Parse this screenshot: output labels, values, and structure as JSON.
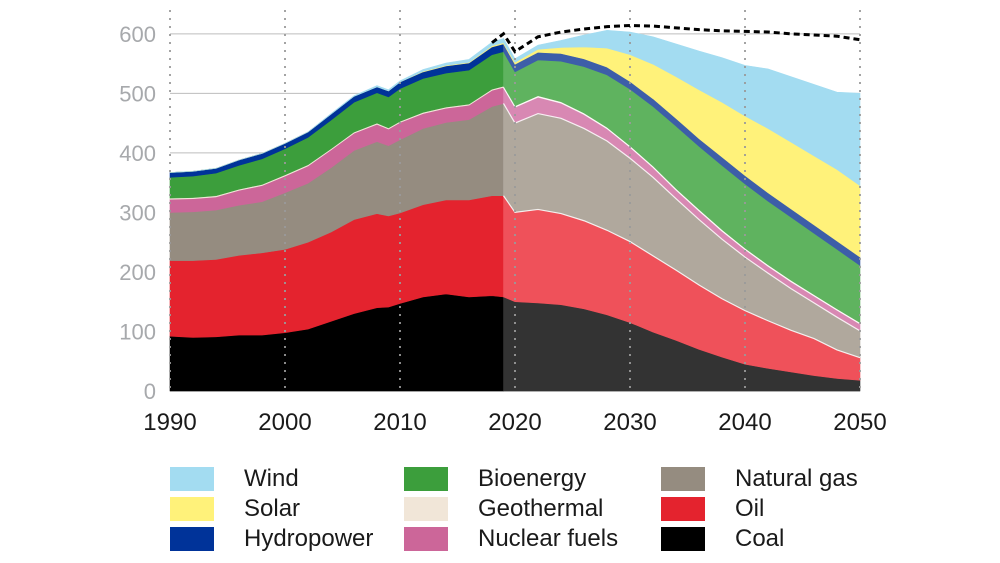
{
  "chart_data": {
    "type": "area",
    "stacked": true,
    "xlabel": "",
    "ylabel": "",
    "xlim": [
      1990,
      2050
    ],
    "ylim": [
      0,
      640
    ],
    "history_end": 2019,
    "yticks": [
      0,
      100,
      200,
      300,
      400,
      500,
      600
    ],
    "xticks": [
      1990,
      2000,
      2010,
      2020,
      2030,
      2040,
      2050
    ],
    "vertical_gridlines_at": [
      1990,
      2000,
      2010,
      2020,
      2030,
      2040,
      2050
    ],
    "x": [
      1990,
      1992,
      1994,
      1996,
      1998,
      2000,
      2002,
      2004,
      2006,
      2008,
      2009,
      2010,
      2012,
      2014,
      2016,
      2018,
      2019,
      2020,
      2022,
      2024,
      2026,
      2028,
      2030,
      2032,
      2034,
      2036,
      2038,
      2040,
      2042,
      2044,
      2046,
      2048,
      2050
    ],
    "series": [
      {
        "name": "Coal",
        "color": "#000000",
        "projection_color": "#333333",
        "values": [
          92,
          90,
          91,
          94,
          94,
          98,
          104,
          117,
          130,
          140,
          141,
          147,
          158,
          163,
          158,
          160,
          158,
          150,
          148,
          145,
          138,
          128,
          115,
          99,
          85,
          70,
          57,
          45,
          38,
          32,
          26,
          21,
          18
        ]
      },
      {
        "name": "Oil",
        "color": "#e4232e",
        "projection_color": "#ef515a",
        "values": [
          127,
          129,
          130,
          134,
          138,
          140,
          146,
          150,
          158,
          158,
          153,
          152,
          155,
          158,
          163,
          168,
          170,
          150,
          157,
          153,
          148,
          142,
          136,
          128,
          118,
          108,
          98,
          90,
          80,
          70,
          62,
          48,
          38
        ]
      },
      {
        "name": "Natural gas",
        "color": "#958c80",
        "projection_color": "#b0a89d",
        "values": [
          81,
          82,
          83,
          84,
          86,
          95,
          99,
          108,
          116,
          121,
          118,
          123,
          128,
          130,
          135,
          150,
          155,
          150,
          161,
          160,
          155,
          150,
          140,
          132,
          120,
          110,
          100,
          90,
          80,
          70,
          60,
          55,
          45
        ]
      },
      {
        "name": "Nuclear fuels",
        "color": "#cc6699",
        "projection_color": "#d888b3",
        "values": [
          22,
          22,
          22,
          25,
          27,
          28,
          29,
          30,
          29,
          29,
          28,
          29,
          25,
          24,
          24,
          27,
          27,
          27,
          28,
          26,
          24,
          21,
          19,
          17,
          15,
          15,
          14,
          13,
          12,
          12,
          12,
          12,
          12
        ]
      },
      {
        "name": "Geothermal",
        "color": "#f1e6d8",
        "projection_color": "#f1e6d8",
        "values": [
          2,
          2,
          2,
          2,
          2,
          2,
          2,
          2,
          2,
          2,
          2,
          2,
          2,
          2,
          2,
          2,
          2,
          2,
          2,
          2,
          2,
          2,
          2,
          2,
          2,
          2,
          2,
          2,
          2,
          2,
          2,
          2,
          2
        ]
      },
      {
        "name": "Bioenergy",
        "color": "#3c9e3c",
        "projection_color": "#5fb35f",
        "values": [
          35,
          36,
          38,
          40,
          43,
          44,
          46,
          48,
          50,
          51,
          52,
          55,
          57,
          57,
          57,
          58,
          58,
          57,
          60,
          68,
          78,
          88,
          95,
          100,
          105,
          106,
          108,
          108,
          107,
          106,
          103,
          100,
          96
        ]
      },
      {
        "name": "Hydropower",
        "color": "#003399",
        "projection_color": "#3d5ea8",
        "values": [
          8,
          8,
          8,
          9,
          9,
          9,
          9,
          10,
          10,
          10,
          10,
          11,
          11,
          12,
          12,
          13,
          13,
          13,
          13,
          13,
          13,
          13,
          13,
          13,
          13,
          13,
          14,
          14,
          14,
          14,
          14,
          14,
          14
        ]
      },
      {
        "name": "Solar",
        "color": "#fff27a",
        "projection_color": "#fff27a",
        "values": [
          0,
          0,
          0,
          0,
          0,
          0,
          0,
          0,
          0,
          0,
          0,
          0,
          1,
          1,
          1,
          2,
          2,
          3,
          5,
          10,
          20,
          32,
          45,
          58,
          70,
          82,
          92,
          100,
          108,
          112,
          116,
          120,
          120
        ]
      },
      {
        "name": "Wind",
        "color": "#a3dcf1",
        "projection_color": "#a3dcf1",
        "values": [
          0,
          0,
          0,
          0,
          0,
          0,
          0,
          1,
          1,
          2,
          2,
          2,
          3,
          4,
          5,
          6,
          7,
          6,
          7,
          12,
          20,
          30,
          38,
          46,
          55,
          65,
          75,
          85,
          100,
          110,
          120,
          130,
          155
        ]
      }
    ],
    "reference_line": {
      "style": "dashed",
      "color": "#000000",
      "x": [
        2018,
        2019,
        2020,
        2022,
        2024,
        2026,
        2028,
        2030,
        2032,
        2034,
        2036,
        2038,
        2040,
        2042,
        2044,
        2046,
        2048,
        2050
      ],
      "values": [
        585,
        600,
        570,
        595,
        603,
        608,
        612,
        614,
        613,
        610,
        607,
        605,
        604,
        603,
        600,
        598,
        596,
        590
      ]
    },
    "legend_position": "bottom",
    "legend": [
      [
        "Wind",
        "Solar",
        "Hydropower"
      ],
      [
        "Bioenergy",
        "Geothermal",
        "Nuclear fuels"
      ],
      [
        "Natural gas",
        "Oil",
        "Coal"
      ]
    ]
  }
}
